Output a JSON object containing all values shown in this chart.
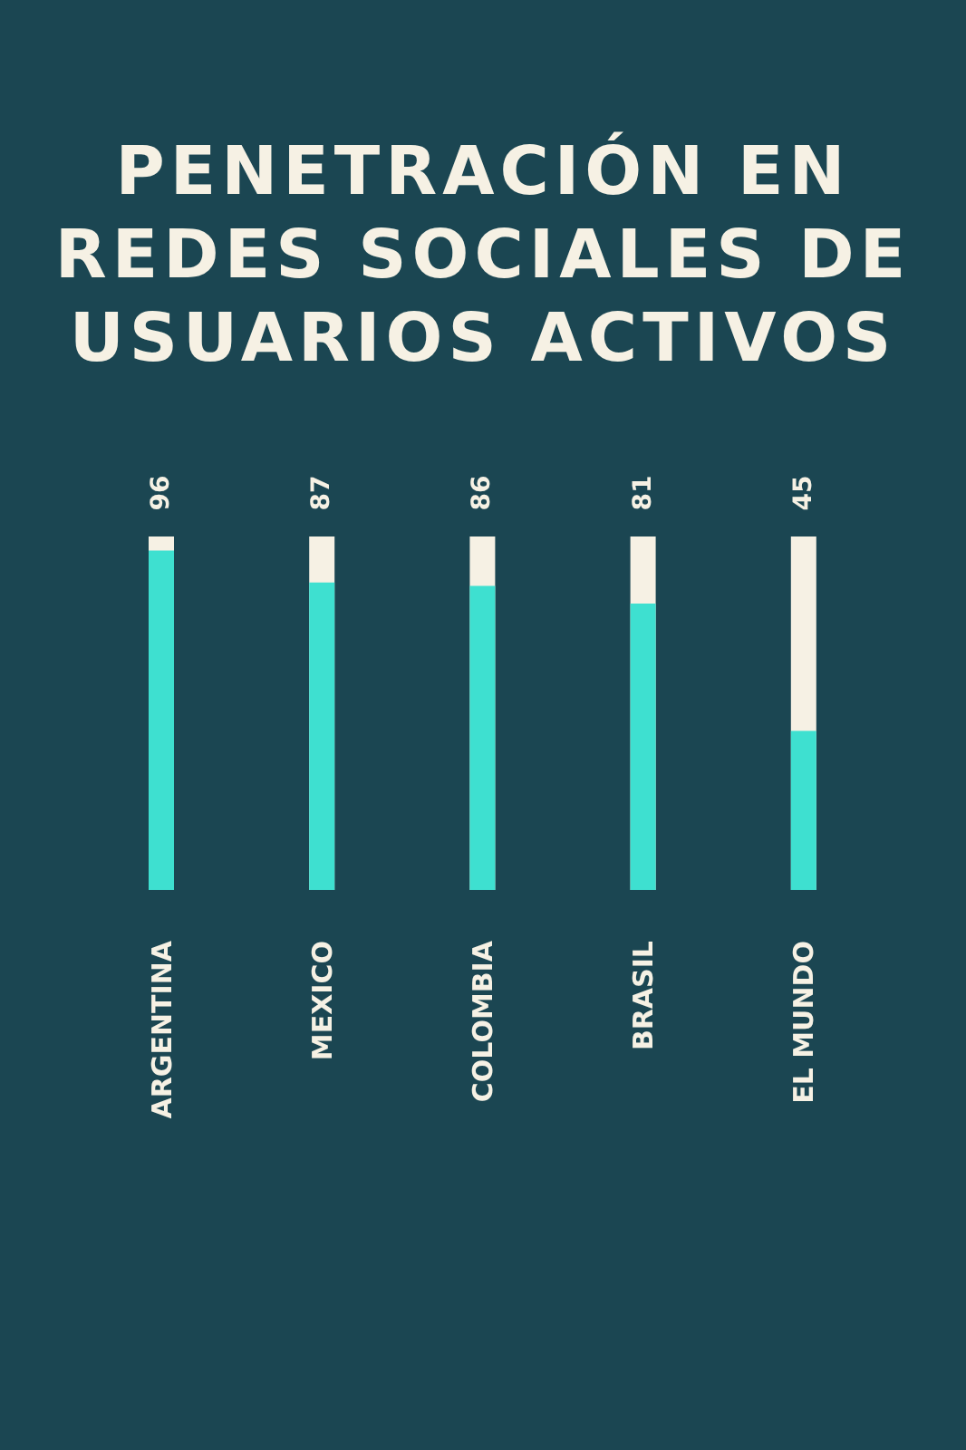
{
  "chart_data": {
    "type": "bar",
    "title": "PENETRACIÓN EN REDES SOCIALES DE USUARIOS ACTIVOS",
    "categories": [
      "ARGENTINA",
      "MEXICO",
      "COLOMBIA",
      "BRASIL",
      "EL MUNDO"
    ],
    "values": [
      96,
      87,
      86,
      81,
      45
    ],
    "color": "#3ee0d0",
    "ylim": [
      0,
      100
    ],
    "tick_labels": "x",
    "data_labels": true,
    "grid": false,
    "legend": false
  }
}
